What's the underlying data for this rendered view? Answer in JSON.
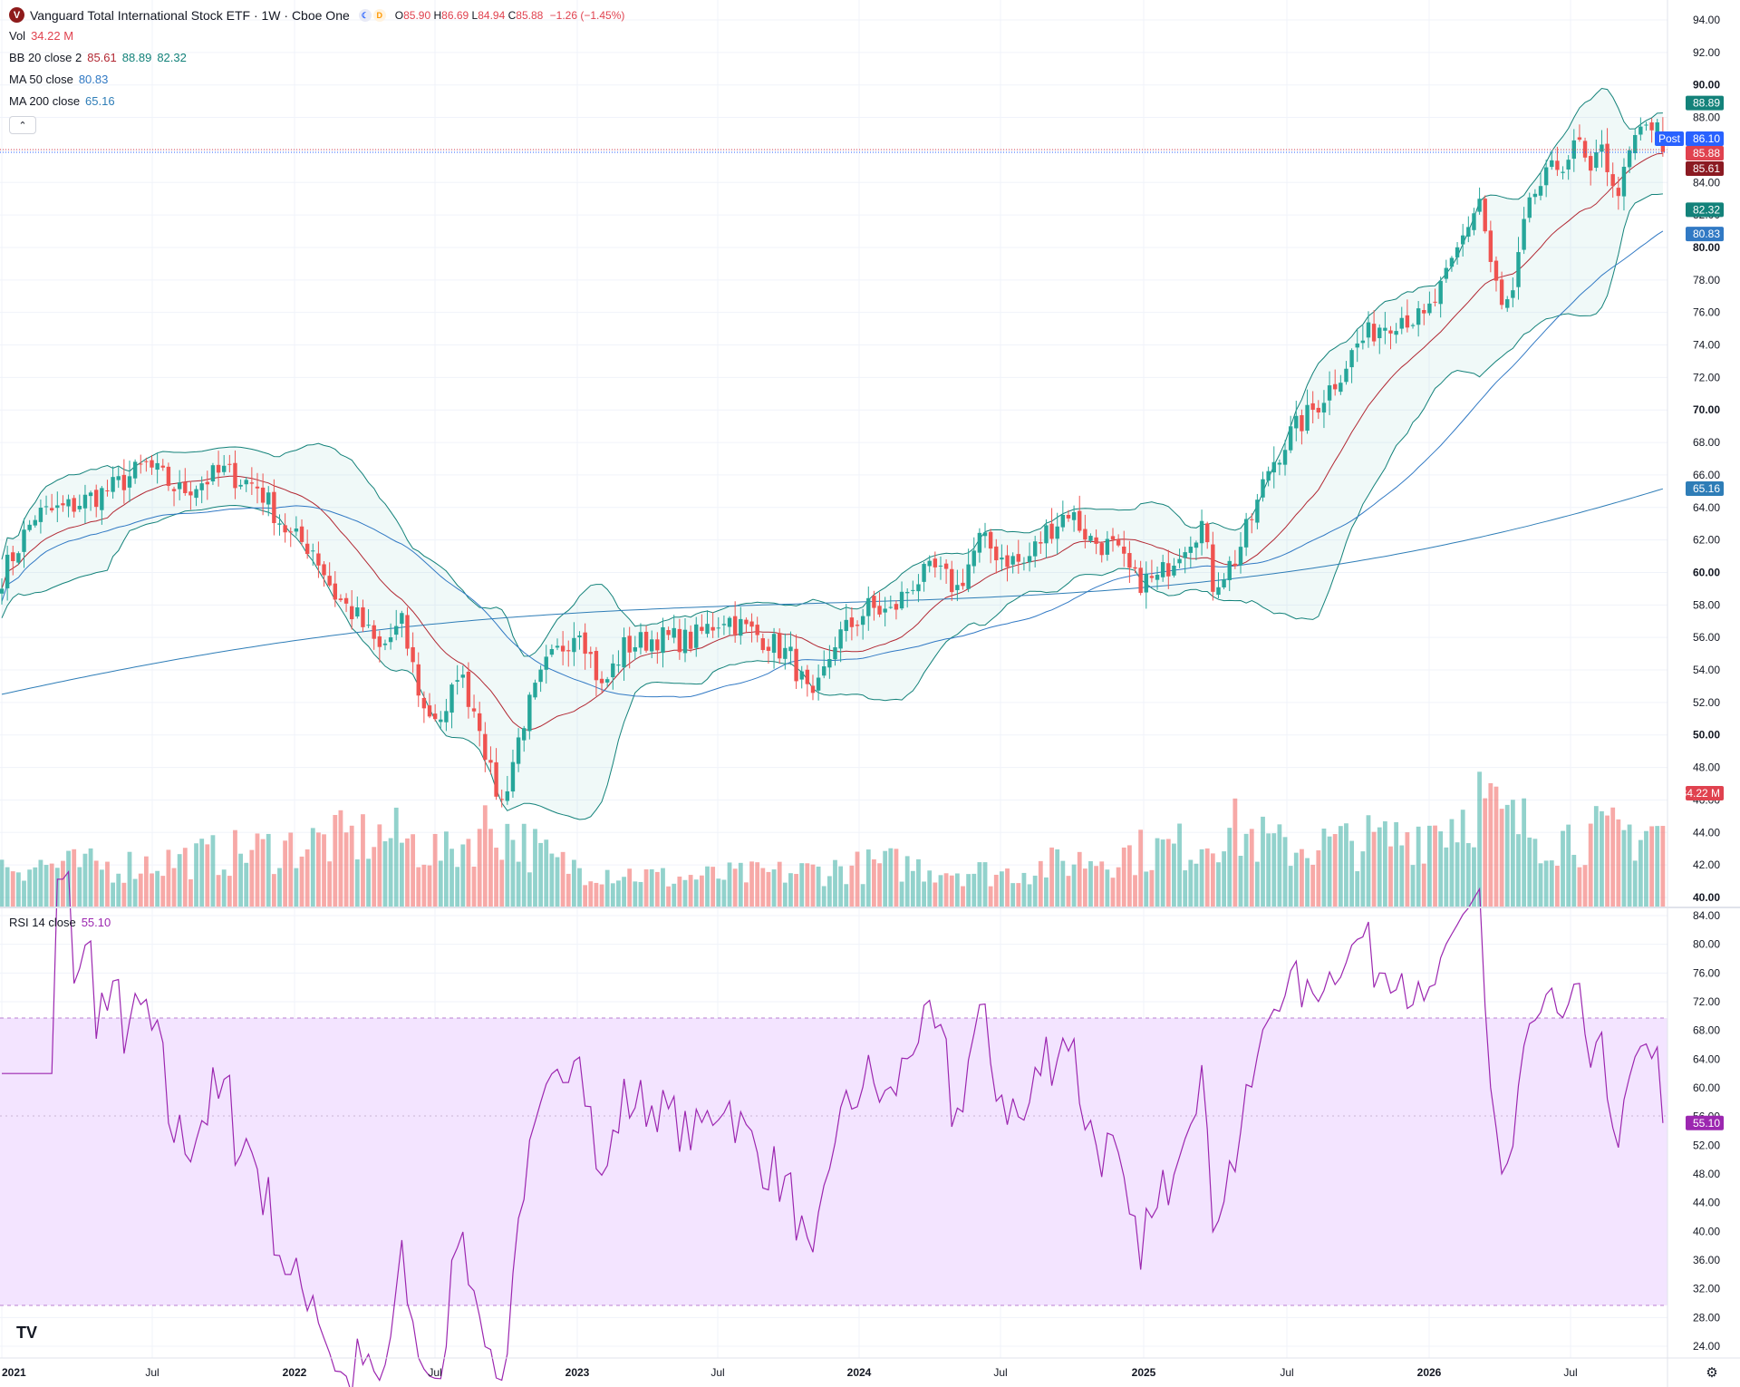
{
  "header": {
    "logo_letter": "V",
    "symbol_title": "Vanguard Total International Stock ETF · 1W · Cboe One",
    "status_icons": [
      "moon-icon",
      "delayed-icon"
    ],
    "delayed_letter": "D",
    "ohlc": {
      "o_label": "O",
      "o": "85.90",
      "h_label": "H",
      "h": "86.69",
      "l_label": "L",
      "l": "84.94",
      "c_label": "C",
      "c": "85.88",
      "change": "−1.26 (−1.45%)"
    },
    "color_down": "#e0424f",
    "color_up": "#26a69a"
  },
  "indicators": {
    "vol": {
      "label": "Vol",
      "value": "34.22 M"
    },
    "bb": {
      "label": "BB 20 close 2",
      "basis": "85.61",
      "upper": "88.89",
      "lower": "82.32"
    },
    "ma50": {
      "label": "MA 50 close",
      "value": "80.83"
    },
    "ma200": {
      "label": "MA 200 close",
      "value": "65.16"
    },
    "rsi": {
      "label": "RSI 14 close",
      "value": "55.10"
    }
  },
  "collapse_symbol": "⌃",
  "price_badges": {
    "bb_upper": "88.89",
    "post_label": "Post",
    "post_price": "86.10",
    "last_price": "85.88",
    "bb_basis": "85.61",
    "bb_lower": "82.32",
    "ma50": "80.83",
    "ma200": "65.16",
    "volume": "34.22 M",
    "rsi": "55.10"
  },
  "time_axis": [
    "2021",
    "Jul",
    "2022",
    "Jul",
    "2023",
    "Jul",
    "2024",
    "Jul",
    "2025",
    "Jul",
    "2026",
    "Jul"
  ],
  "price_axis": [
    "94.00",
    "92.00",
    "90.00",
    "88.00",
    "86.00",
    "84.00",
    "82.00",
    "80.00",
    "78.00",
    "76.00",
    "74.00",
    "72.00",
    "70.00",
    "68.00",
    "66.00",
    "64.00",
    "62.00",
    "60.00",
    "58.00",
    "56.00",
    "54.00",
    "52.00",
    "50.00",
    "48.00",
    "46.00",
    "44.00",
    "42.00",
    "40.00"
  ],
  "rsi_axis": [
    "84.00",
    "80.00",
    "76.00",
    "72.00",
    "68.00",
    "64.00",
    "60.00",
    "56.00",
    "52.00",
    "48.00",
    "44.00",
    "40.00",
    "36.00",
    "32.00",
    "28.00",
    "24.00"
  ],
  "tv_logo": "TV",
  "settings_icon": "⚙",
  "chart_data": {
    "type": "candlestick",
    "interval": "1W",
    "x_range": [
      "2021-01",
      "2026-09"
    ],
    "price_ylim": [
      40,
      94
    ],
    "rsi_ylim": [
      24,
      84
    ],
    "rsi_band": [
      30,
      70
    ],
    "colors": {
      "up": "#26a69a",
      "down": "#ef5350",
      "bb": "#089981",
      "bb_basis": "#b22833",
      "ma50": "#2962ff",
      "ma200": "#2e7db7",
      "rsi": "#9c27b0",
      "rsi_fill": "#f3e4ff"
    },
    "close_anchors": [
      [
        0,
        59.8
      ],
      [
        6,
        63.5
      ],
      [
        12,
        64.0
      ],
      [
        20,
        65.2
      ],
      [
        26,
        66.6
      ],
      [
        32,
        65.0
      ],
      [
        40,
        66.2
      ],
      [
        46,
        65.3
      ],
      [
        52,
        62.2
      ],
      [
        56,
        61.5
      ],
      [
        60,
        58.6
      ],
      [
        64,
        57.2
      ],
      [
        68,
        55.2
      ],
      [
        72,
        56.8
      ],
      [
        76,
        51.5
      ],
      [
        80,
        51.0
      ],
      [
        82,
        54.0
      ],
      [
        86,
        50.8
      ],
      [
        88,
        47.5
      ],
      [
        90,
        45.8
      ],
      [
        94,
        51.0
      ],
      [
        98,
        54.2
      ],
      [
        104,
        56.8
      ],
      [
        108,
        52.8
      ],
      [
        112,
        55.4
      ],
      [
        118,
        56.0
      ],
      [
        124,
        55.8
      ],
      [
        130,
        57.3
      ],
      [
        134,
        56.5
      ],
      [
        138,
        55.8
      ],
      [
        142,
        54.8
      ],
      [
        146,
        51.8
      ],
      [
        150,
        55.8
      ],
      [
        156,
        57.8
      ],
      [
        160,
        57.5
      ],
      [
        164,
        59.4
      ],
      [
        168,
        60.1
      ],
      [
        172,
        59.0
      ],
      [
        176,
        62.0
      ],
      [
        180,
        61.0
      ],
      [
        184,
        60.5
      ],
      [
        188,
        62.5
      ],
      [
        192,
        63.8
      ],
      [
        196,
        62.0
      ],
      [
        200,
        61.5
      ],
      [
        204,
        59.5
      ],
      [
        208,
        59.5
      ],
      [
        212,
        61.5
      ],
      [
        216,
        63.0
      ],
      [
        218,
        59.3
      ],
      [
        222,
        60.8
      ],
      [
        226,
        64.2
      ],
      [
        228,
        66.4
      ],
      [
        232,
        68.5
      ],
      [
        236,
        70.0
      ],
      [
        240,
        71.8
      ],
      [
        244,
        74.0
      ],
      [
        248,
        75.2
      ],
      [
        252,
        75.8
      ],
      [
        256,
        75.5
      ],
      [
        260,
        78.0
      ],
      [
        264,
        81.5
      ],
      [
        266,
        83.0
      ],
      [
        268,
        79.0
      ],
      [
        270,
        76.2
      ],
      [
        272,
        77.0
      ],
      [
        274,
        81.2
      ],
      [
        276,
        83.4
      ],
      [
        280,
        85.0
      ],
      [
        284,
        86.3
      ],
      [
        286,
        84.0
      ],
      [
        288,
        86.8
      ],
      [
        290,
        83.3
      ],
      [
        292,
        84.3
      ],
      [
        294,
        86.7
      ],
      [
        296,
        87.5
      ],
      [
        298,
        87.1
      ],
      [
        299,
        85.88
      ]
    ],
    "volume_anchors_m": [
      [
        0,
        18
      ],
      [
        20,
        17
      ],
      [
        40,
        22
      ],
      [
        60,
        28
      ],
      [
        70,
        30
      ],
      [
        80,
        22
      ],
      [
        88,
        35
      ],
      [
        92,
        30
      ],
      [
        100,
        18
      ],
      [
        120,
        12
      ],
      [
        140,
        14
      ],
      [
        160,
        18
      ],
      [
        180,
        14
      ],
      [
        200,
        22
      ],
      [
        215,
        26
      ],
      [
        220,
        34
      ],
      [
        230,
        25
      ],
      [
        250,
        28
      ],
      [
        262,
        38
      ],
      [
        266,
        46
      ],
      [
        270,
        36
      ],
      [
        280,
        30
      ],
      [
        290,
        30
      ],
      [
        299,
        34.22
      ]
    ],
    "last_values": {
      "close": 85.88,
      "post": 86.1,
      "bb_upper": 88.89,
      "bb_basis": 85.61,
      "bb_lower": 82.32,
      "ma50": 80.83,
      "ma200": 65.16,
      "volume_m": 34.22,
      "rsi": 55.1
    }
  }
}
